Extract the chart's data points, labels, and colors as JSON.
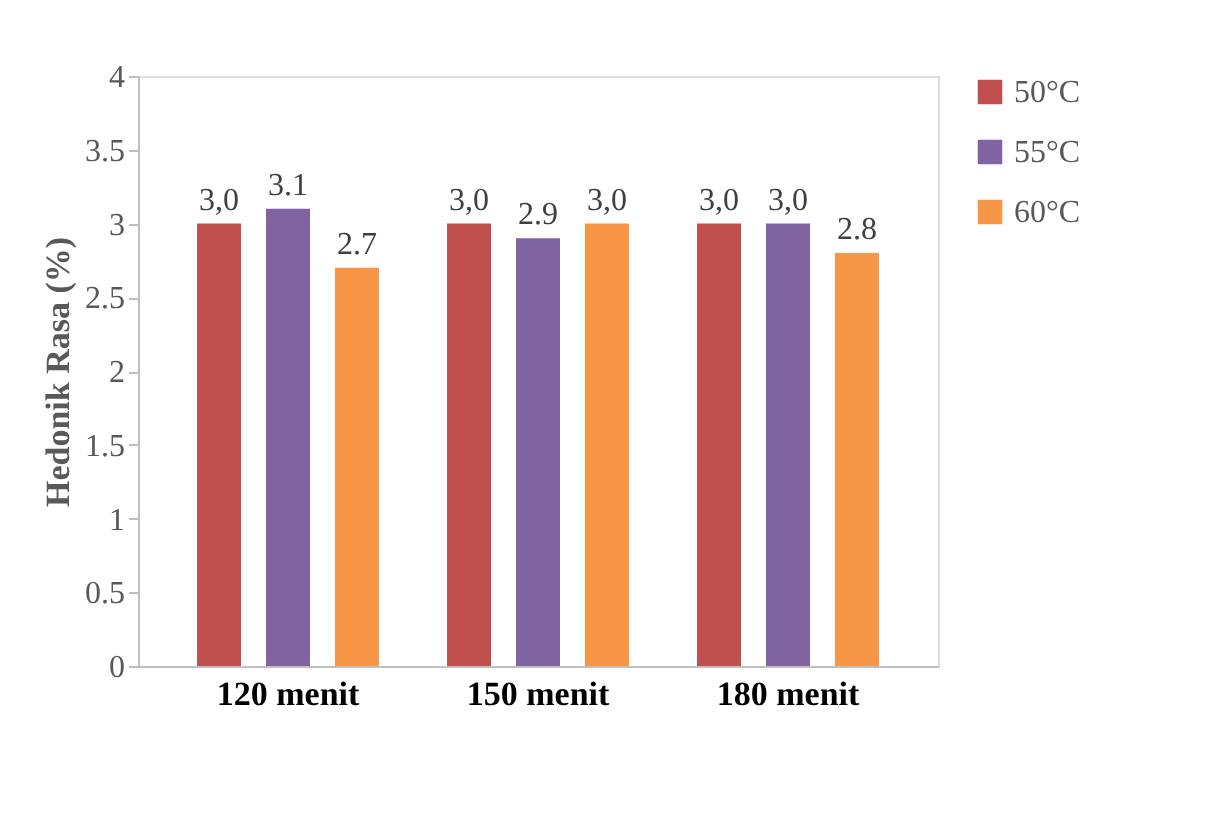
{
  "chart_data": {
    "type": "bar",
    "ylabel": "Hedonik Rasa (%)",
    "categories": [
      "120 menit",
      "150 menit",
      "180 menit"
    ],
    "series": [
      {
        "name": "50°C",
        "color": "#c0504d",
        "values": [
          3.0,
          3.0,
          3.0
        ],
        "value_labels": [
          "3,0",
          "3,0",
          "3,0"
        ]
      },
      {
        "name": "55°C",
        "color": "#8064a2",
        "values": [
          3.1,
          2.9,
          3.0
        ],
        "value_labels": [
          "3.1",
          "2.9",
          "3,0"
        ]
      },
      {
        "name": "60°C",
        "color": "#f79646",
        "values": [
          2.7,
          3.0,
          2.8
        ],
        "value_labels": [
          "2.7",
          "3,0",
          "2.8"
        ]
      }
    ],
    "ylim": [
      0,
      4
    ],
    "yticks": [
      0,
      0.5,
      1,
      1.5,
      2,
      2.5,
      3,
      3.5,
      4
    ],
    "grid": false,
    "legend": "right"
  }
}
